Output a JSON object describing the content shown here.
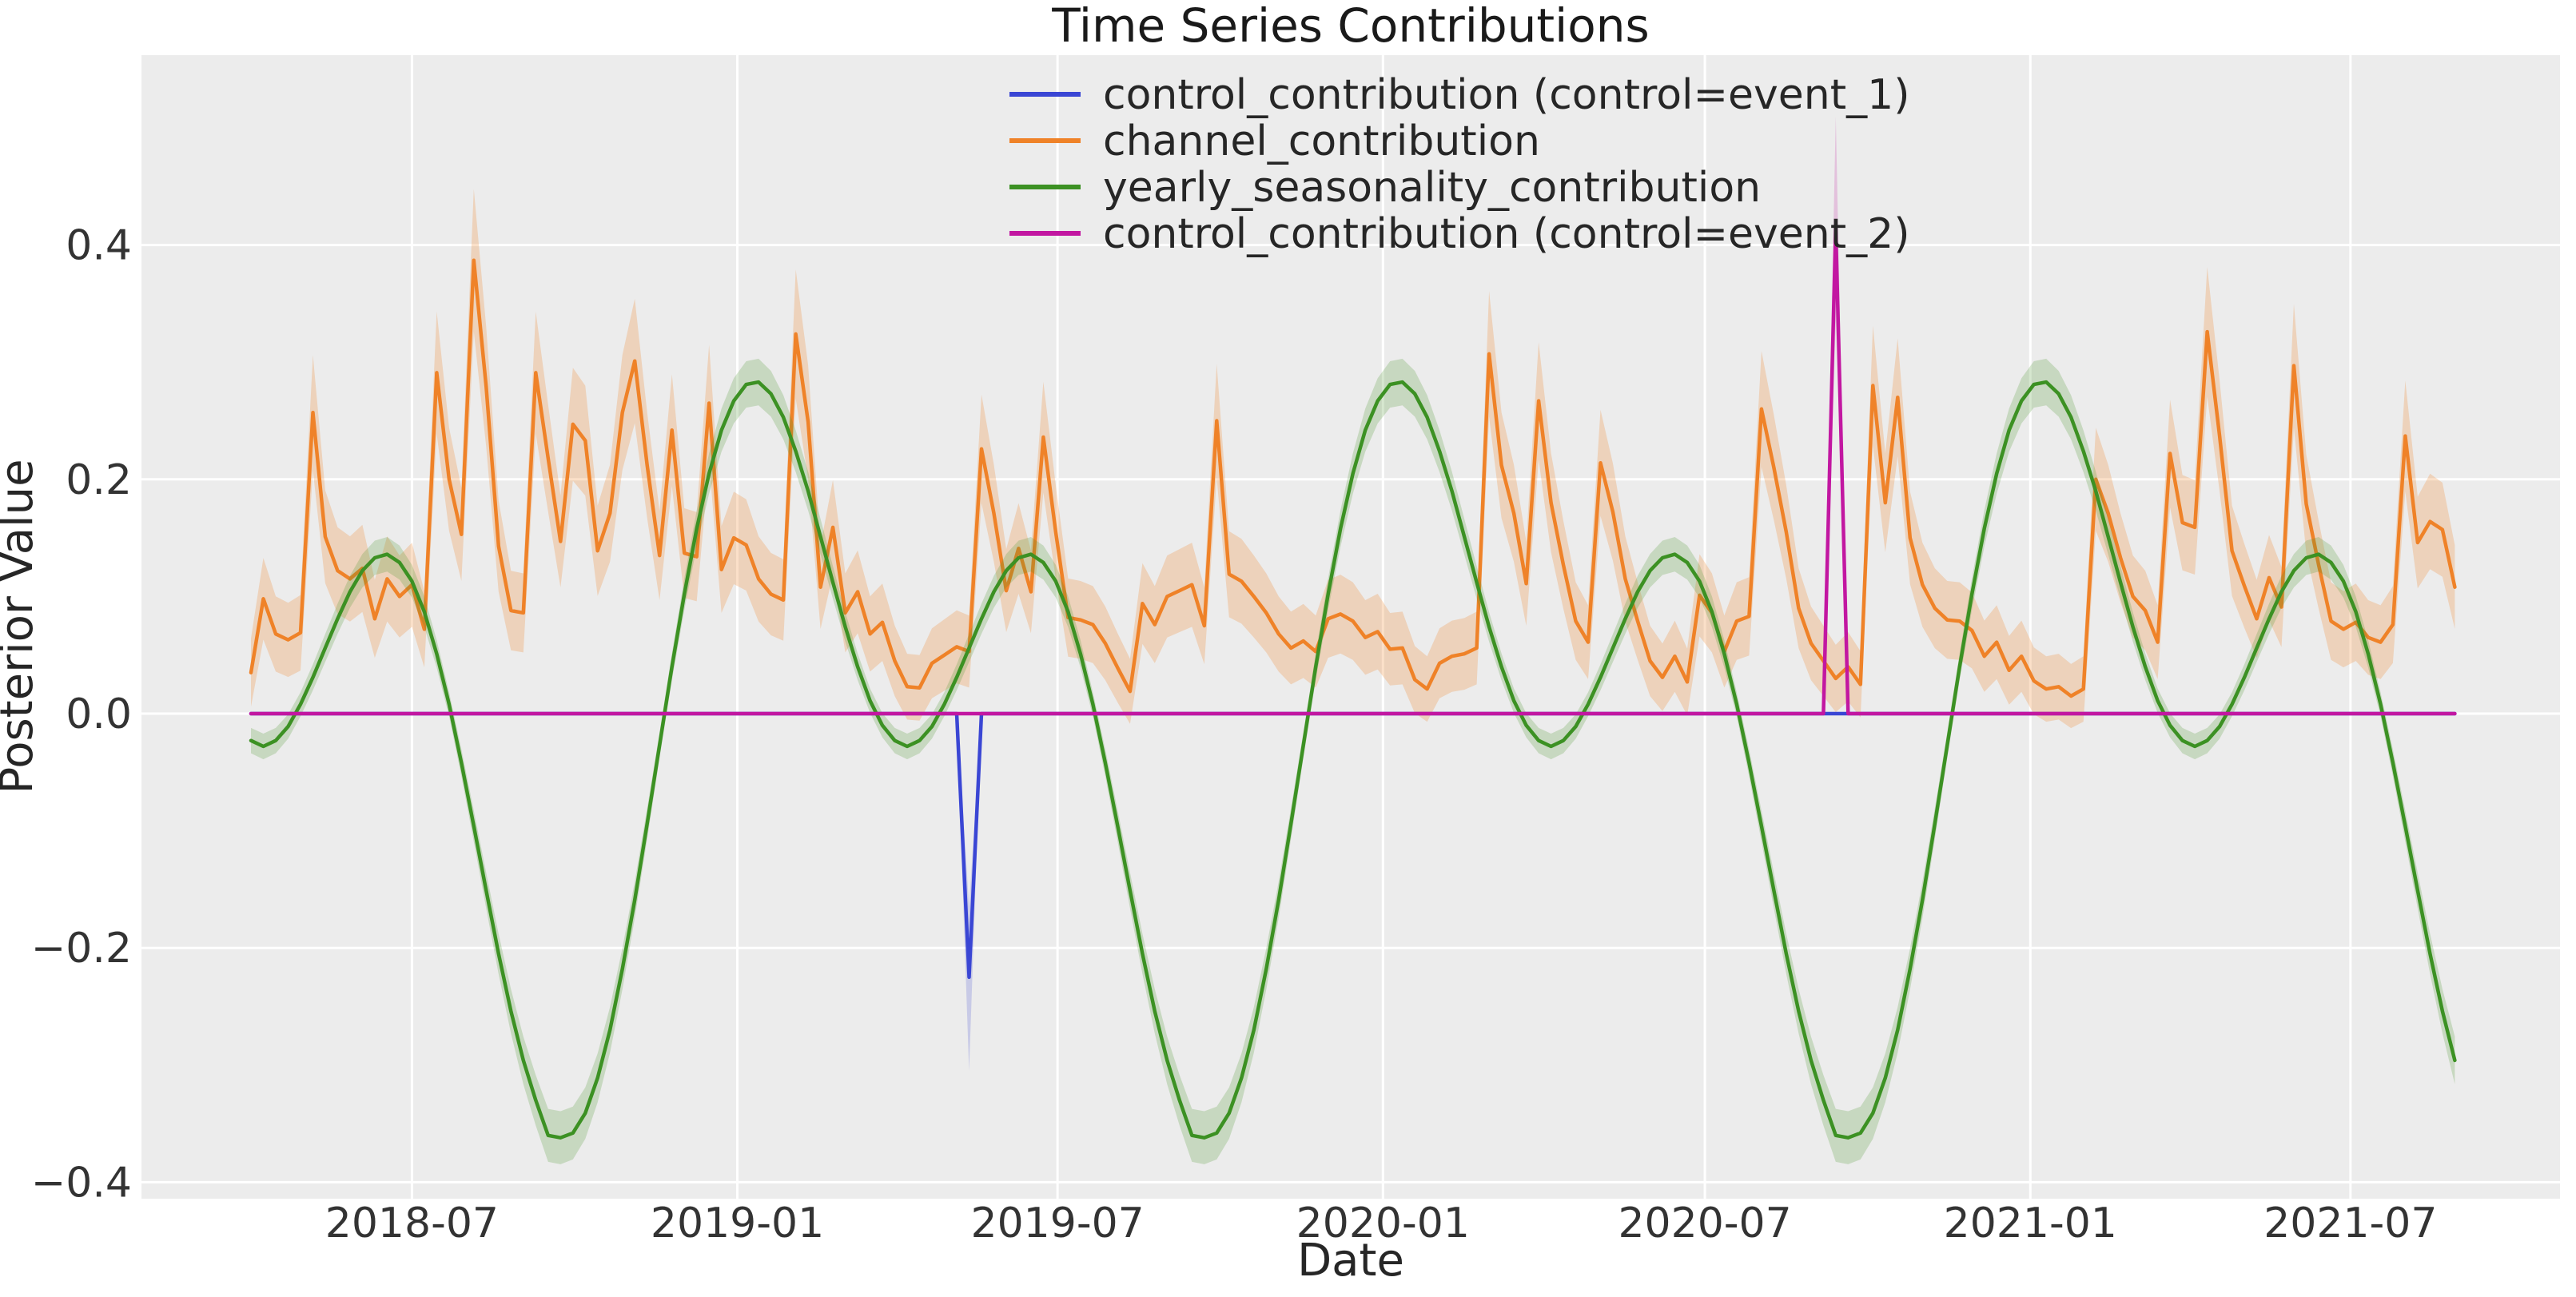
{
  "title": "Time Series Contributions",
  "labels": {
    "x": "Date",
    "y": "Posterior Value"
  },
  "colors": {
    "figure_background": "#ffffff",
    "plot_background": "#ececec",
    "gridline": "#ffffff",
    "text": "#333333",
    "blue": "#3a46d4",
    "orange": "#ef8228",
    "green": "#3c9123",
    "magenta": "#c217a1",
    "blue_band": "rgba(58,70,212,0.20)",
    "orange_band": "rgba(239,130,40,0.25)",
    "green_band": "rgba(69,147,35,0.22)",
    "magenta_band": "rgba(194,23,161,0.20)"
  },
  "chart_data": {
    "type": "line",
    "title": "Time Series Contributions",
    "xlabel": "Date",
    "ylabel": "Posterior Value",
    "grid": "white-on-gray",
    "legend_position": "upper center, no frame",
    "x_start_date": "2018-04-01",
    "x_step_days": 7,
    "n_points": 179,
    "x_end_date": "2021-08-29",
    "ylim": [
      -0.414,
      0.562
    ],
    "y_ticks": [
      {
        "label": "0.4",
        "value": 0.4
      },
      {
        "label": "0.2",
        "value": 0.2
      },
      {
        "label": "0.0",
        "value": 0.0
      },
      {
        "label": "−0.2",
        "value": -0.2
      },
      {
        "label": "−0.4",
        "value": -0.4
      }
    ],
    "x_ticks": [
      {
        "label": "2018-07",
        "day": 91
      },
      {
        "label": "2019-01",
        "day": 275
      },
      {
        "label": "2019-07",
        "day": 456
      },
      {
        "label": "2020-01",
        "day": 640
      },
      {
        "label": "2020-07",
        "day": 822
      },
      {
        "label": "2021-01",
        "day": 1006
      },
      {
        "label": "2021-07",
        "day": 1187
      }
    ],
    "series": [
      {
        "name": "control_contribution (control=event_1)",
        "color_key": "blue",
        "band_color_key": "blue_band",
        "base_value": 0,
        "events": [
          {
            "index": 58,
            "date": "2019-05-12",
            "value": -0.225,
            "band": [
              -0.305,
              -0.165
            ]
          }
        ]
      },
      {
        "name": "channel_contribution",
        "color_key": "orange",
        "band_color_key": "orange_band",
        "band_rule": {
          "abs": 0.026,
          "frac": 0.09
        },
        "values": [
          0.035,
          0.098,
          0.068,
          0.063,
          0.069,
          0.257,
          0.151,
          0.122,
          0.115,
          0.124,
          0.081,
          0.115,
          0.1,
          0.11,
          0.072,
          0.291,
          0.2,
          0.153,
          0.387,
          0.279,
          0.143,
          0.088,
          0.086,
          0.291,
          0.218,
          0.147,
          0.247,
          0.233,
          0.139,
          0.171,
          0.257,
          0.301,
          0.212,
          0.135,
          0.242,
          0.137,
          0.134,
          0.265,
          0.123,
          0.15,
          0.144,
          0.115,
          0.102,
          0.097,
          0.324,
          0.249,
          0.108,
          0.159,
          0.086,
          0.104,
          0.068,
          0.078,
          0.045,
          0.023,
          0.022,
          0.043,
          0.05,
          0.057,
          0.053,
          0.226,
          0.171,
          0.105,
          0.141,
          0.104,
          0.236,
          0.155,
          0.082,
          0.08,
          0.076,
          0.06,
          0.039,
          0.019,
          0.094,
          0.076,
          0.1,
          0.105,
          0.11,
          0.075,
          0.25,
          0.119,
          0.113,
          0.1,
          0.086,
          0.068,
          0.056,
          0.062,
          0.053,
          0.081,
          0.085,
          0.079,
          0.065,
          0.07,
          0.055,
          0.056,
          0.029,
          0.021,
          0.043,
          0.049,
          0.051,
          0.056,
          0.307,
          0.212,
          0.171,
          0.111,
          0.267,
          0.18,
          0.127,
          0.079,
          0.061,
          0.214,
          0.172,
          0.115,
          0.079,
          0.045,
          0.031,
          0.049,
          0.027,
          0.101,
          0.086,
          0.053,
          0.079,
          0.083,
          0.26,
          0.21,
          0.155,
          0.09,
          0.06,
          0.045,
          0.03,
          0.04,
          0.025,
          0.28,
          0.18,
          0.27,
          0.15,
          0.11,
          0.09,
          0.08,
          0.079,
          0.071,
          0.049,
          0.061,
          0.037,
          0.049,
          0.028,
          0.021,
          0.023,
          0.015,
          0.021,
          0.2,
          0.171,
          0.133,
          0.1,
          0.088,
          0.061,
          0.222,
          0.163,
          0.159,
          0.326,
          0.237,
          0.139,
          0.109,
          0.081,
          0.116,
          0.091,
          0.297,
          0.179,
          0.127,
          0.079,
          0.072,
          0.078,
          0.065,
          0.061,
          0.076,
          0.237,
          0.146,
          0.164,
          0.157,
          0.108
        ]
      },
      {
        "name": "yearly_seasonality_contribution",
        "color_key": "green",
        "band_color_key": "green_band",
        "band_rule": {
          "abs": 0.01,
          "frac": 0.035
        },
        "repeat_yearly": true,
        "yearly_values": [
          -0.023,
          -0.028,
          -0.023,
          -0.011,
          0.008,
          0.031,
          0.056,
          0.081,
          0.104,
          0.122,
          0.133,
          0.136,
          0.129,
          0.113,
          0.087,
          0.051,
          0.008,
          -0.042,
          -0.096,
          -0.151,
          -0.205,
          -0.254,
          -0.296,
          -0.33,
          -0.36,
          -0.362,
          -0.358,
          -0.341,
          -0.311,
          -0.27,
          -0.218,
          -0.159,
          -0.094,
          -0.027,
          0.04,
          0.102,
          0.158,
          0.205,
          0.242,
          0.267,
          0.281,
          0.283,
          0.273,
          0.253,
          0.224,
          0.19,
          0.151,
          0.112,
          0.074,
          0.04,
          0.011,
          -0.01
        ]
      },
      {
        "name": "control_contribution (control=event_2)",
        "color_key": "magenta",
        "band_color_key": "magenta_band",
        "base_value": 0,
        "events": [
          {
            "index": 128,
            "date": "2020-09-13",
            "value": 0.415,
            "band": [
              0.335,
              0.51
            ]
          }
        ]
      }
    ]
  }
}
